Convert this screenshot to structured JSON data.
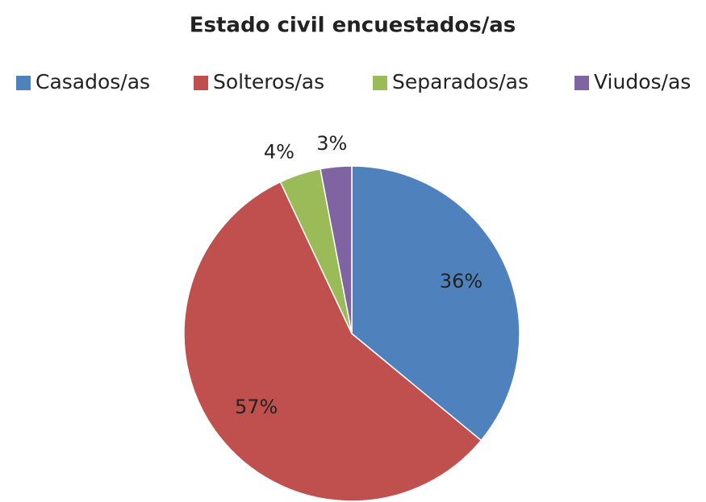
{
  "chart_data": {
    "type": "pie",
    "title": "Estado civil encuestados/as",
    "categories": [
      "Casados/as",
      "Solteros/as",
      "Separados/as",
      "Viudos/as"
    ],
    "values": [
      36,
      57,
      4,
      3
    ],
    "value_labels": [
      "36%",
      "57%",
      "4%",
      "3%"
    ],
    "colors": [
      "#4f81bd",
      "#c0504d",
      "#9bbb59",
      "#8064a2"
    ],
    "legend": "top"
  }
}
